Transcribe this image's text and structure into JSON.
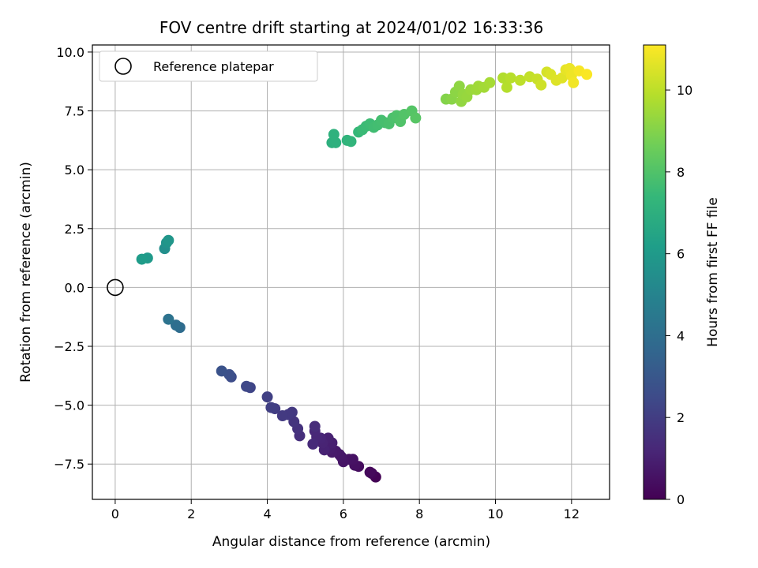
{
  "chart_data": {
    "type": "scatter",
    "title": "FOV centre drift starting at 2024/01/02 16:33:36",
    "xlabel": "Angular distance from reference (arcmin)",
    "ylabel": "Rotation from reference (arcmin)",
    "xlim": [
      -0.6,
      13.0
    ],
    "ylim": [
      -9.0,
      10.3
    ],
    "x_ticks": [
      0,
      2,
      4,
      6,
      8,
      10,
      12
    ],
    "y_ticks": [
      -7.5,
      -5.0,
      -2.5,
      0.0,
      2.5,
      5.0,
      7.5,
      10.0
    ],
    "y_tick_labels": [
      "−7.5",
      "−5.0",
      "−2.5",
      "0.0",
      "2.5",
      "5.0",
      "7.5",
      "10.0"
    ],
    "grid": true,
    "legend": {
      "placement": "top-left",
      "entries": [
        "Reference platepar"
      ]
    },
    "reference_point": {
      "x": 0,
      "y": 0,
      "label": "Reference platepar"
    },
    "colorbar": {
      "label": "Hours from first FF file",
      "range": [
        0,
        11.1
      ],
      "ticks": [
        0,
        2,
        4,
        6,
        8,
        10
      ],
      "colormap": "viridis",
      "stops": [
        "#440154",
        "#482878",
        "#3e4a89",
        "#31688e",
        "#26828e",
        "#1f9e89",
        "#35b779",
        "#6ece58",
        "#b5de2b",
        "#fde725"
      ]
    },
    "points": [
      [
        6.85,
        -8.05,
        0.05
      ],
      [
        6.75,
        -7.9,
        0.15
      ],
      [
        6.7,
        -7.85,
        0.25
      ],
      [
        6.4,
        -7.6,
        0.35
      ],
      [
        6.3,
        -7.55,
        0.45
      ],
      [
        6.25,
        -7.3,
        0.5
      ],
      [
        6.15,
        -7.3,
        0.55
      ],
      [
        6.0,
        -7.4,
        0.6
      ],
      [
        5.95,
        -7.2,
        0.65
      ],
      [
        5.9,
        -7.1,
        0.7
      ],
      [
        5.8,
        -6.95,
        0.75
      ],
      [
        5.7,
        -7.0,
        0.8
      ],
      [
        5.65,
        -6.85,
        0.85
      ],
      [
        5.6,
        -6.75,
        0.9
      ],
      [
        5.7,
        -6.6,
        0.95
      ],
      [
        5.6,
        -6.4,
        1.0
      ],
      [
        5.5,
        -6.9,
        1.05
      ],
      [
        5.45,
        -6.6,
        1.1
      ],
      [
        5.4,
        -6.4,
        1.15
      ],
      [
        5.3,
        -6.35,
        1.2
      ],
      [
        5.25,
        -6.1,
        1.25
      ],
      [
        5.2,
        -6.65,
        1.3
      ],
      [
        5.25,
        -5.9,
        1.4
      ],
      [
        4.85,
        -6.3,
        1.5
      ],
      [
        4.8,
        -6.0,
        1.6
      ],
      [
        4.7,
        -5.7,
        1.7
      ],
      [
        4.65,
        -5.3,
        1.8
      ],
      [
        4.55,
        -5.4,
        1.85
      ],
      [
        4.4,
        -5.45,
        1.9
      ],
      [
        4.2,
        -5.15,
        2.0
      ],
      [
        4.1,
        -5.1,
        2.05
      ],
      [
        4.0,
        -4.65,
        2.1
      ],
      [
        3.55,
        -4.25,
        2.3
      ],
      [
        3.45,
        -4.2,
        2.4
      ],
      [
        3.05,
        -3.8,
        2.6
      ],
      [
        3.0,
        -3.7,
        2.7
      ],
      [
        2.8,
        -3.55,
        2.8
      ],
      [
        1.7,
        -1.7,
        3.9
      ],
      [
        1.6,
        -1.6,
        4.0
      ],
      [
        1.4,
        -1.35,
        4.2
      ],
      [
        1.3,
        1.65,
        5.5
      ],
      [
        1.35,
        1.9,
        5.7
      ],
      [
        1.4,
        2.0,
        5.8
      ],
      [
        0.85,
        1.25,
        6.0
      ],
      [
        0.7,
        1.2,
        6.1
      ],
      [
        5.7,
        6.15,
        7.0
      ],
      [
        5.8,
        6.15,
        7.05
      ],
      [
        5.75,
        6.5,
        7.1
      ],
      [
        6.1,
        6.25,
        7.2
      ],
      [
        6.2,
        6.2,
        7.25
      ],
      [
        6.4,
        6.6,
        7.4
      ],
      [
        6.5,
        6.7,
        7.5
      ],
      [
        6.6,
        6.85,
        7.55
      ],
      [
        6.7,
        6.95,
        7.6
      ],
      [
        6.8,
        6.8,
        7.65
      ],
      [
        6.9,
        6.9,
        7.7
      ],
      [
        7.0,
        7.1,
        7.75
      ],
      [
        7.1,
        7.0,
        7.8
      ],
      [
        7.2,
        6.95,
        7.85
      ],
      [
        7.3,
        7.2,
        7.9
      ],
      [
        7.4,
        7.3,
        7.95
      ],
      [
        7.5,
        7.05,
        8.0
      ],
      [
        7.6,
        7.35,
        8.05
      ],
      [
        7.8,
        7.5,
        8.1
      ],
      [
        7.9,
        7.2,
        8.15
      ],
      [
        8.7,
        8.0,
        9.0
      ],
      [
        8.85,
        8.0,
        9.1
      ],
      [
        8.95,
        8.3,
        9.15
      ],
      [
        9.05,
        8.55,
        9.2
      ],
      [
        9.1,
        7.9,
        9.25
      ],
      [
        9.15,
        8.2,
        9.3
      ],
      [
        9.25,
        8.1,
        9.35
      ],
      [
        9.35,
        8.4,
        9.4
      ],
      [
        9.5,
        8.4,
        9.45
      ],
      [
        9.55,
        8.55,
        9.5
      ],
      [
        9.7,
        8.5,
        9.55
      ],
      [
        9.85,
        8.7,
        9.6
      ],
      [
        10.2,
        8.9,
        9.8
      ],
      [
        10.3,
        8.5,
        9.85
      ],
      [
        10.4,
        8.9,
        9.9
      ],
      [
        10.65,
        8.8,
        10.0
      ],
      [
        10.9,
        8.95,
        10.1
      ],
      [
        11.1,
        8.85,
        10.2
      ],
      [
        11.2,
        8.6,
        10.3
      ],
      [
        11.35,
        9.15,
        10.4
      ],
      [
        11.45,
        9.05,
        10.5
      ],
      [
        11.6,
        8.8,
        10.55
      ],
      [
        11.75,
        8.9,
        10.6
      ],
      [
        11.85,
        9.25,
        10.7
      ],
      [
        11.95,
        9.3,
        10.8
      ],
      [
        12.0,
        9.0,
        10.85
      ],
      [
        12.05,
        8.7,
        10.9
      ],
      [
        12.2,
        9.2,
        11.0
      ],
      [
        12.4,
        9.05,
        11.05
      ]
    ]
  }
}
